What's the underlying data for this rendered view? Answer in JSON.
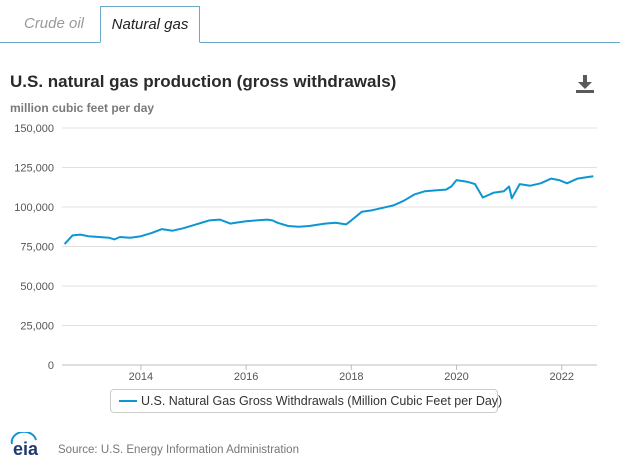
{
  "tabs": [
    {
      "label": "Crude oil",
      "active": false
    },
    {
      "label": "Natural gas",
      "active": true
    }
  ],
  "header": {
    "title": "U.S. natural gas production (gross withdrawals)",
    "unit_label": "million cubic feet per day",
    "download_icon": "download-icon"
  },
  "logo": {
    "text": "eia"
  },
  "source": "Source: U.S. Energy Information Administration",
  "colors": {
    "series": "#0d96d4",
    "tab_border": "#6aa8c8",
    "grid": "#e0e0e0"
  },
  "chart_data": {
    "type": "line",
    "title": "U.S. natural gas production (gross withdrawals)",
    "ylabel": "million cubic feet per day",
    "xlabel": "",
    "xlim": [
      2012.5,
      2022.67
    ],
    "ylim": [
      0,
      150000
    ],
    "y_ticks": [
      0,
      25000,
      50000,
      75000,
      100000,
      125000,
      150000
    ],
    "y_tick_labels": [
      "0",
      "25,000",
      "50,000",
      "75,000",
      "100,000",
      "125,000",
      "150,000"
    ],
    "x_ticks": [
      2014,
      2016,
      2018,
      2020,
      2022
    ],
    "x_tick_labels": [
      "2014",
      "2016",
      "2018",
      "2020",
      "2022"
    ],
    "grid": true,
    "legend": "bottom-center",
    "series": [
      {
        "name": "U.S. Natural Gas Gross Withdrawals (Million Cubic Feet per Day)",
        "x": [
          2012.55,
          2012.7,
          2012.85,
          2013.0,
          2013.2,
          2013.4,
          2013.5,
          2013.6,
          2013.8,
          2014.0,
          2014.2,
          2014.4,
          2014.6,
          2014.8,
          2015.0,
          2015.2,
          2015.3,
          2015.5,
          2015.7,
          2015.8,
          2016.0,
          2016.2,
          2016.4,
          2016.5,
          2016.6,
          2016.8,
          2017.0,
          2017.2,
          2017.4,
          2017.5,
          2017.7,
          2017.9,
          2018.0,
          2018.2,
          2018.4,
          2018.6,
          2018.8,
          2019.0,
          2019.2,
          2019.4,
          2019.6,
          2019.8,
          2019.9,
          2020.0,
          2020.2,
          2020.35,
          2020.5,
          2020.7,
          2020.9,
          2021.0,
          2021.05,
          2021.2,
          2021.4,
          2021.6,
          2021.8,
          2021.95,
          2022.1,
          2022.3,
          2022.5,
          2022.6
        ],
        "values": [
          76500,
          82000,
          82500,
          81500,
          81000,
          80500,
          79500,
          81000,
          80500,
          81500,
          83500,
          86000,
          85000,
          86500,
          88500,
          90500,
          91500,
          92000,
          89500,
          90000,
          91000,
          91500,
          92000,
          91500,
          90000,
          88000,
          87500,
          88000,
          89000,
          89500,
          90000,
          89000,
          91500,
          97000,
          98000,
          99500,
          101000,
          104000,
          108000,
          110000,
          110500,
          111000,
          113000,
          117000,
          116000,
          114500,
          106000,
          109000,
          110000,
          113000,
          105500,
          114500,
          113500,
          115000,
          118000,
          117000,
          115000,
          118000,
          119000,
          119500
        ]
      }
    ]
  }
}
